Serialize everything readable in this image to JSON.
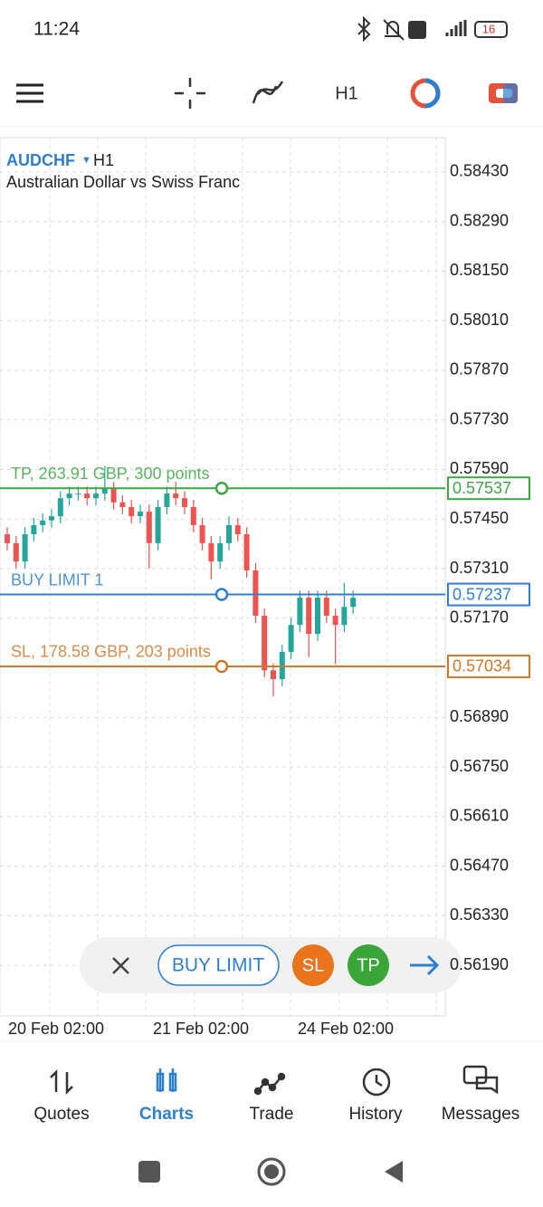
{
  "status_bar": {
    "time": "11:24",
    "battery": "16"
  },
  "toolbar": {
    "timeframe": "H1"
  },
  "chart_data": {
    "type": "candlestick",
    "symbol": "AUDCHF",
    "timeframe": "H1",
    "subtitle": "Australian Dollar vs Swiss Franc",
    "ylim": [
      0.56047,
      0.58527
    ],
    "yticks": [
      {
        "value": 0.5843,
        "label": "0.58430"
      },
      {
        "value": 0.5829,
        "label": "0.58290"
      },
      {
        "value": 0.5815,
        "label": "0.58150"
      },
      {
        "value": 0.5801,
        "label": "0.58010"
      },
      {
        "value": 0.5787,
        "label": "0.57870"
      },
      {
        "value": 0.5773,
        "label": "0.57730"
      },
      {
        "value": 0.5759,
        "label": "0.57590"
      },
      {
        "value": 0.5745,
        "label": "0.57450"
      },
      {
        "value": 0.5731,
        "label": "0.57310"
      },
      {
        "value": 0.5717,
        "label": "0.57170"
      },
      {
        "value": 0.5689,
        "label": "0.56890"
      },
      {
        "value": 0.5675,
        "label": "0.56750"
      },
      {
        "value": 0.5661,
        "label": "0.56610"
      },
      {
        "value": 0.5647,
        "label": "0.56470"
      },
      {
        "value": 0.5633,
        "label": "0.56330"
      },
      {
        "value": 0.5619,
        "label": "0.56190"
      }
    ],
    "x_labels": [
      "20 Feb 02:00",
      "21 Feb 02:00",
      "24 Feb 02:00"
    ],
    "up_color": "#26a69a",
    "down_color": "#ef5350",
    "candles": [
      {
        "o": 0.57407,
        "h": 0.57427,
        "l": 0.57362,
        "c": 0.57382
      },
      {
        "o": 0.57382,
        "h": 0.57402,
        "l": 0.5731,
        "c": 0.5733
      },
      {
        "o": 0.5733,
        "h": 0.57427,
        "l": 0.5731,
        "c": 0.57407
      },
      {
        "o": 0.57407,
        "h": 0.57453,
        "l": 0.57387,
        "c": 0.57433
      },
      {
        "o": 0.57433,
        "h": 0.57466,
        "l": 0.57413,
        "c": 0.57446
      },
      {
        "o": 0.57446,
        "h": 0.57478,
        "l": 0.57426,
        "c": 0.57458
      },
      {
        "o": 0.57458,
        "h": 0.57529,
        "l": 0.57438,
        "c": 0.57509
      },
      {
        "o": 0.57509,
        "h": 0.57542,
        "l": 0.57489,
        "c": 0.57522
      },
      {
        "o": 0.57522,
        "h": 0.57542,
        "l": 0.57502,
        "c": 0.57522
      },
      {
        "o": 0.57522,
        "h": 0.57542,
        "l": 0.57489,
        "c": 0.57509
      },
      {
        "o": 0.57509,
        "h": 0.57542,
        "l": 0.57489,
        "c": 0.57522
      },
      {
        "o": 0.57522,
        "h": 0.576,
        "l": 0.57502,
        "c": 0.57535
      },
      {
        "o": 0.57535,
        "h": 0.57555,
        "l": 0.57477,
        "c": 0.57497
      },
      {
        "o": 0.57497,
        "h": 0.57517,
        "l": 0.57464,
        "c": 0.57484
      },
      {
        "o": 0.57484,
        "h": 0.57504,
        "l": 0.57438,
        "c": 0.57458
      },
      {
        "o": 0.57458,
        "h": 0.57491,
        "l": 0.57438,
        "c": 0.57471
      },
      {
        "o": 0.57471,
        "h": 0.57491,
        "l": 0.5731,
        "c": 0.57382
      },
      {
        "o": 0.57382,
        "h": 0.57504,
        "l": 0.57362,
        "c": 0.57484
      },
      {
        "o": 0.57484,
        "h": 0.57542,
        "l": 0.57464,
        "c": 0.57522
      },
      {
        "o": 0.57522,
        "h": 0.57555,
        "l": 0.57489,
        "c": 0.57509
      },
      {
        "o": 0.57509,
        "h": 0.57529,
        "l": 0.57464,
        "c": 0.57484
      },
      {
        "o": 0.57484,
        "h": 0.57504,
        "l": 0.57413,
        "c": 0.57433
      },
      {
        "o": 0.57433,
        "h": 0.57453,
        "l": 0.57362,
        "c": 0.57382
      },
      {
        "o": 0.57382,
        "h": 0.57402,
        "l": 0.57279,
        "c": 0.5733
      },
      {
        "o": 0.5733,
        "h": 0.57402,
        "l": 0.5731,
        "c": 0.57382
      },
      {
        "o": 0.57382,
        "h": 0.57458,
        "l": 0.57362,
        "c": 0.57433
      },
      {
        "o": 0.57433,
        "h": 0.57453,
        "l": 0.57387,
        "c": 0.57407
      },
      {
        "o": 0.57407,
        "h": 0.57427,
        "l": 0.57285,
        "c": 0.57305
      },
      {
        "o": 0.57305,
        "h": 0.57325,
        "l": 0.57157,
        "c": 0.57177
      },
      {
        "o": 0.57177,
        "h": 0.57197,
        "l": 0.57003,
        "c": 0.57023
      },
      {
        "o": 0.57023,
        "h": 0.57043,
        "l": 0.5695,
        "c": 0.56998
      },
      {
        "o": 0.56998,
        "h": 0.57095,
        "l": 0.56978,
        "c": 0.57075
      },
      {
        "o": 0.57075,
        "h": 0.57171,
        "l": 0.57055,
        "c": 0.57151
      },
      {
        "o": 0.57151,
        "h": 0.57248,
        "l": 0.57131,
        "c": 0.57228
      },
      {
        "o": 0.57228,
        "h": 0.57248,
        "l": 0.5706,
        "c": 0.57126
      },
      {
        "o": 0.57126,
        "h": 0.57248,
        "l": 0.57106,
        "c": 0.57228
      },
      {
        "o": 0.57228,
        "h": 0.57248,
        "l": 0.57157,
        "c": 0.57177
      },
      {
        "o": 0.57177,
        "h": 0.57197,
        "l": 0.5704,
        "c": 0.57151
      },
      {
        "o": 0.57151,
        "h": 0.5727,
        "l": 0.57131,
        "c": 0.57202
      },
      {
        "o": 0.57202,
        "h": 0.57248,
        "l": 0.57182,
        "c": 0.57228
      }
    ],
    "levels": [
      {
        "label": "TP, 263.91 GBP, 300 points",
        "price": 0.57537,
        "color": "#3fa648"
      },
      {
        "label": "BUY LIMIT 1",
        "price": 0.57237,
        "color": "#2f7fd0"
      },
      {
        "label": "SL, 178.58 GBP, 203 points",
        "price": 0.57034,
        "color": "#d0782a"
      }
    ]
  },
  "trade_bar": {
    "order": "BUY LIMIT",
    "sl": "SL",
    "tp": "TP"
  },
  "nav": [
    "Quotes",
    "Charts",
    "Trade",
    "History",
    "Messages"
  ]
}
